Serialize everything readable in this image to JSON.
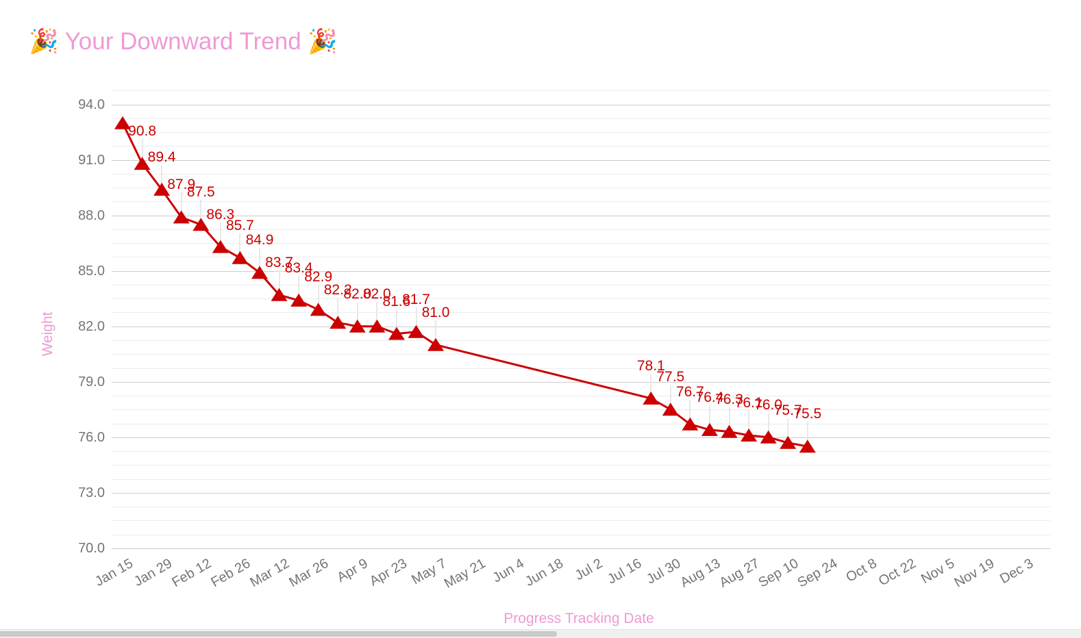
{
  "colors": {
    "series_red": "#cc0000",
    "accent_pink": "#ee9ad5",
    "tick_gray": "#757575",
    "grid_major": "#cccccc",
    "grid_minor": "#ececec",
    "label_leader": "#e8e8e8"
  },
  "chart_data": {
    "type": "line",
    "title": "🎉 Your Downward Trend 🎉",
    "xlabel": "Progress Tracking Date",
    "ylabel": "Weight",
    "legend_position": "none",
    "grid": "on",
    "ylim": [
      70.0,
      94.0
    ],
    "y_axis": {
      "ticks": [
        {
          "label": "94.0",
          "value": 94.0
        },
        {
          "label": "91.0",
          "value": 91.0
        },
        {
          "label": "88.0",
          "value": 88.0
        },
        {
          "label": "85.0",
          "value": 85.0
        },
        {
          "label": "82.0",
          "value": 82.0
        },
        {
          "label": "79.0",
          "value": 79.0
        },
        {
          "label": "76.0",
          "value": 76.0
        },
        {
          "label": "73.0",
          "value": 73.0
        },
        {
          "label": "70.0",
          "value": 70.0
        }
      ],
      "minor_step": 0.75
    },
    "x_axis": {
      "ticks": [
        "Jan 15",
        "Jan 29",
        "Feb 12",
        "Feb 26",
        "Mar 12",
        "Mar 26",
        "Apr 9",
        "Apr 23",
        "May 7",
        "May 21",
        "Jun 4",
        "Jun 18",
        "Jul 2",
        "Jul 16",
        "Jul 30",
        "Aug 13",
        "Aug 27",
        "Sep 10",
        "Sep 24",
        "Oct 8",
        "Oct 22",
        "Nov 5",
        "Nov 19",
        "Dec 3"
      ],
      "tick_interval_weeks": 2
    },
    "series": [
      {
        "name": "Weight",
        "color": "#cc0000",
        "marker": "triangle-up",
        "points": [
          {
            "week": 0,
            "date": "Jan 15",
            "value": 93.0,
            "label": ""
          },
          {
            "week": 1,
            "date": "Jan 22",
            "value": 90.8,
            "label": "90.8"
          },
          {
            "week": 2,
            "date": "Jan 29",
            "value": 89.4,
            "label": "89.4"
          },
          {
            "week": 3,
            "date": "Feb 5",
            "value": 87.9,
            "label": "87.9"
          },
          {
            "week": 4,
            "date": "Feb 12",
            "value": 87.5,
            "label": "87.5"
          },
          {
            "week": 5,
            "date": "Feb 19",
            "value": 86.3,
            "label": "86.3"
          },
          {
            "week": 6,
            "date": "Feb 26",
            "value": 85.7,
            "label": "85.7"
          },
          {
            "week": 7,
            "date": "Mar 5",
            "value": 84.9,
            "label": "84.9"
          },
          {
            "week": 8,
            "date": "Mar 12",
            "value": 83.7,
            "label": "83.7"
          },
          {
            "week": 9,
            "date": "Mar 19",
            "value": 83.4,
            "label": "83.4"
          },
          {
            "week": 10,
            "date": "Mar 26",
            "value": 82.9,
            "label": "82.9"
          },
          {
            "week": 11,
            "date": "Apr 2",
            "value": 82.2,
            "label": "82.2"
          },
          {
            "week": 12,
            "date": "Apr 9",
            "value": 82.0,
            "label": "82.0"
          },
          {
            "week": 13,
            "date": "Apr 16",
            "value": 82.0,
            "label": "82.0"
          },
          {
            "week": 14,
            "date": "Apr 23",
            "value": 81.6,
            "label": "81.6"
          },
          {
            "week": 15,
            "date": "Apr 30",
            "value": 81.7,
            "label": "81.7"
          },
          {
            "week": 16,
            "date": "May 7",
            "value": 81.0,
            "label": "81.0"
          },
          {
            "week": 27,
            "date": "Jul 23",
            "value": 78.1,
            "label": "78.1"
          },
          {
            "week": 28,
            "date": "Jul 30",
            "value": 77.5,
            "label": "77.5"
          },
          {
            "week": 29,
            "date": "Aug 6",
            "value": 76.7,
            "label": "76.7"
          },
          {
            "week": 30,
            "date": "Aug 13",
            "value": 76.4,
            "label": "76.4"
          },
          {
            "week": 31,
            "date": "Aug 20",
            "value": 76.3,
            "label": "76.3"
          },
          {
            "week": 32,
            "date": "Aug 27",
            "value": 76.1,
            "label": "76.1"
          },
          {
            "week": 33,
            "date": "Sep 3",
            "value": 76.0,
            "label": "76.0"
          },
          {
            "week": 34,
            "date": "Sep 10",
            "value": 75.7,
            "label": "75.7"
          },
          {
            "week": 35,
            "date": "Sep 17",
            "value": 75.5,
            "label": "75.5"
          }
        ]
      }
    ]
  }
}
